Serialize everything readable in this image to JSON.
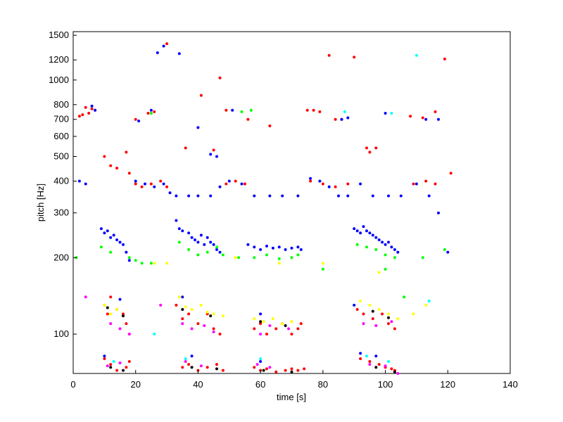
{
  "chart_data": {
    "type": "scatter",
    "title": "",
    "xlabel": "time [s]",
    "ylabel": "pitch [Hz]",
    "xlim": [
      0,
      140
    ],
    "ylim": [
      70,
      1550
    ],
    "y_scale": "log",
    "grid": false,
    "legend": "none",
    "x_ticks": [
      0,
      20,
      40,
      60,
      80,
      100,
      120,
      140
    ],
    "x_tick_labels": [
      "0",
      "20",
      "40",
      "60",
      "80",
      "100",
      "120",
      "140"
    ],
    "y_ticks": [
      100,
      200,
      300,
      400,
      500,
      600,
      700,
      800,
      1000,
      1200,
      1500
    ],
    "y_tick_labels": [
      "100",
      "200",
      "300",
      "400",
      "500",
      "600",
      "700",
      "800",
      "1000",
      "1200",
      "1500"
    ],
    "series": [
      {
        "color": "#ff0000",
        "points": [
          [
            2,
            720
          ],
          [
            3,
            730
          ],
          [
            4,
            780
          ],
          [
            5,
            740
          ],
          [
            6,
            770
          ],
          [
            7,
            760
          ],
          [
            10,
            500
          ],
          [
            12,
            460
          ],
          [
            14,
            450
          ],
          [
            17,
            520
          ],
          [
            18,
            430
          ],
          [
            20,
            700
          ],
          [
            24,
            740
          ],
          [
            26,
            750
          ],
          [
            30,
            1390
          ],
          [
            36,
            540
          ],
          [
            41,
            870
          ],
          [
            45,
            530
          ],
          [
            47,
            1020
          ],
          [
            49,
            760
          ],
          [
            56,
            700
          ],
          [
            63,
            660
          ],
          [
            75,
            760
          ],
          [
            77,
            760
          ],
          [
            79,
            750
          ],
          [
            82,
            1250
          ],
          [
            84,
            700
          ],
          [
            86,
            700
          ],
          [
            90,
            1230
          ],
          [
            94,
            540
          ],
          [
            95,
            520
          ],
          [
            97,
            540
          ],
          [
            108,
            720
          ],
          [
            112,
            710
          ],
          [
            116,
            750
          ],
          [
            119,
            1210
          ],
          [
            121,
            430
          ],
          [
            20,
            390
          ],
          [
            22,
            380
          ],
          [
            25,
            390
          ],
          [
            28,
            400
          ],
          [
            30,
            380
          ],
          [
            49,
            390
          ],
          [
            52,
            400
          ],
          [
            55,
            390
          ],
          [
            76,
            400
          ],
          [
            80,
            390
          ],
          [
            84,
            380
          ],
          [
            88,
            390
          ],
          [
            109,
            390
          ],
          [
            113,
            400
          ],
          [
            116,
            390
          ],
          [
            10,
            130
          ],
          [
            11,
            120
          ],
          [
            12,
            140
          ],
          [
            14,
            125
          ],
          [
            16,
            120
          ],
          [
            17,
            110
          ],
          [
            18,
            100
          ],
          [
            33,
            130
          ],
          [
            35,
            115
          ],
          [
            37,
            120
          ],
          [
            40,
            110
          ],
          [
            43,
            120
          ],
          [
            45,
            105
          ],
          [
            47,
            100
          ],
          [
            58,
            105
          ],
          [
            60,
            110
          ],
          [
            62,
            100
          ],
          [
            65,
            105
          ],
          [
            67,
            110
          ],
          [
            70,
            100
          ],
          [
            72,
            105
          ],
          [
            73,
            110
          ],
          [
            91,
            125
          ],
          [
            93,
            120
          ],
          [
            96,
            115
          ],
          [
            99,
            120
          ],
          [
            101,
            110
          ],
          [
            103,
            105
          ],
          [
            10,
            80
          ],
          [
            12,
            76
          ],
          [
            14,
            72
          ],
          [
            17,
            74
          ],
          [
            18,
            78
          ],
          [
            35,
            74
          ],
          [
            37,
            76
          ],
          [
            40,
            72
          ],
          [
            43,
            74
          ],
          [
            46,
            76
          ],
          [
            48,
            72
          ],
          [
            58,
            74
          ],
          [
            60,
            72
          ],
          [
            62,
            73
          ],
          [
            65,
            71
          ],
          [
            68,
            72
          ],
          [
            70,
            73
          ],
          [
            72,
            72
          ],
          [
            74,
            73
          ],
          [
            92,
            80
          ],
          [
            95,
            78
          ],
          [
            98,
            76
          ],
          [
            100,
            74
          ],
          [
            102,
            73
          ],
          [
            103,
            72
          ]
        ]
      },
      {
        "color": "#0000ff",
        "points": [
          [
            2,
            400
          ],
          [
            4,
            390
          ],
          [
            6,
            790
          ],
          [
            7,
            760
          ],
          [
            21,
            690
          ],
          [
            25,
            760
          ],
          [
            27,
            1280
          ],
          [
            29,
            1360
          ],
          [
            34,
            1270
          ],
          [
            40,
            650
          ],
          [
            44,
            510
          ],
          [
            46,
            500
          ],
          [
            51,
            760
          ],
          [
            86,
            700
          ],
          [
            88,
            710
          ],
          [
            100,
            740
          ],
          [
            113,
            700
          ],
          [
            117,
            700
          ],
          [
            20,
            400
          ],
          [
            23,
            390
          ],
          [
            26,
            380
          ],
          [
            29,
            390
          ],
          [
            31,
            360
          ],
          [
            33,
            350
          ],
          [
            37,
            350
          ],
          [
            40,
            350
          ],
          [
            44,
            350
          ],
          [
            47,
            380
          ],
          [
            50,
            400
          ],
          [
            54,
            390
          ],
          [
            58,
            350
          ],
          [
            63,
            350
          ],
          [
            67,
            350
          ],
          [
            72,
            350
          ],
          [
            76,
            410
          ],
          [
            79,
            400
          ],
          [
            82,
            380
          ],
          [
            85,
            350
          ],
          [
            88,
            350
          ],
          [
            92,
            390
          ],
          [
            96,
            350
          ],
          [
            101,
            350
          ],
          [
            105,
            350
          ],
          [
            110,
            390
          ],
          [
            114,
            350
          ],
          [
            117,
            300
          ],
          [
            120,
            210
          ],
          [
            9,
            260
          ],
          [
            10,
            250
          ],
          [
            11,
            255
          ],
          [
            12,
            240
          ],
          [
            13,
            245
          ],
          [
            14,
            235
          ],
          [
            15,
            230
          ],
          [
            16,
            225
          ],
          [
            17,
            210
          ],
          [
            18,
            195
          ],
          [
            33,
            280
          ],
          [
            34,
            260
          ],
          [
            35,
            255
          ],
          [
            37,
            250
          ],
          [
            38,
            240
          ],
          [
            39,
            235
          ],
          [
            40,
            230
          ],
          [
            41,
            245
          ],
          [
            42,
            225
          ],
          [
            43,
            240
          ],
          [
            44,
            230
          ],
          [
            45,
            225
          ],
          [
            46,
            215
          ],
          [
            47,
            210
          ],
          [
            56,
            225
          ],
          [
            58,
            220
          ],
          [
            60,
            215
          ],
          [
            62,
            222
          ],
          [
            64,
            218
          ],
          [
            66,
            220
          ],
          [
            68,
            215
          ],
          [
            70,
            218
          ],
          [
            72,
            220
          ],
          [
            73,
            215
          ],
          [
            90,
            260
          ],
          [
            91,
            255
          ],
          [
            92,
            250
          ],
          [
            93,
            265
          ],
          [
            94,
            255
          ],
          [
            95,
            250
          ],
          [
            96,
            245
          ],
          [
            97,
            240
          ],
          [
            98,
            235
          ],
          [
            99,
            230
          ],
          [
            100,
            225
          ],
          [
            101,
            230
          ],
          [
            102,
            220
          ],
          [
            103,
            215
          ],
          [
            104,
            210
          ],
          [
            15,
            137
          ],
          [
            35,
            140
          ],
          [
            60,
            120
          ],
          [
            90,
            130
          ],
          [
            10,
            82
          ],
          [
            38,
            82
          ],
          [
            60,
            78
          ],
          [
            92,
            84
          ],
          [
            97,
            82
          ]
        ]
      },
      {
        "color": "#00ff00",
        "points": [
          [
            1,
            200
          ],
          [
            9,
            220
          ],
          [
            12,
            210
          ],
          [
            18,
            200
          ],
          [
            20,
            195
          ],
          [
            22,
            190
          ],
          [
            25,
            190
          ],
          [
            34,
            230
          ],
          [
            37,
            215
          ],
          [
            40,
            205
          ],
          [
            43,
            210
          ],
          [
            46,
            220
          ],
          [
            48,
            205
          ],
          [
            53,
            200
          ],
          [
            58,
            200
          ],
          [
            62,
            205
          ],
          [
            66,
            198
          ],
          [
            70,
            200
          ],
          [
            72,
            205
          ],
          [
            91,
            225
          ],
          [
            94,
            220
          ],
          [
            97,
            215
          ],
          [
            100,
            205
          ],
          [
            103,
            200
          ],
          [
            106,
            140
          ],
          [
            112,
            200
          ],
          [
            119,
            215
          ],
          [
            80,
            180
          ],
          [
            100,
            180
          ],
          [
            25,
            740
          ],
          [
            54,
            750
          ],
          [
            57,
            760
          ]
        ]
      },
      {
        "color": "#ffff00",
        "points": [
          [
            10,
            130
          ],
          [
            12,
            120
          ],
          [
            14,
            125
          ],
          [
            16,
            118
          ],
          [
            34,
            140
          ],
          [
            36,
            128
          ],
          [
            38,
            125
          ],
          [
            41,
            130
          ],
          [
            43,
            122
          ],
          [
            45,
            120
          ],
          [
            48,
            118
          ],
          [
            58,
            115
          ],
          [
            61,
            112
          ],
          [
            64,
            115
          ],
          [
            67,
            110
          ],
          [
            70,
            112
          ],
          [
            92,
            135
          ],
          [
            95,
            130
          ],
          [
            98,
            125
          ],
          [
            101,
            120
          ],
          [
            104,
            115
          ],
          [
            109,
            120
          ],
          [
            113,
            130
          ],
          [
            26,
            190
          ],
          [
            30,
            190
          ],
          [
            52,
            200
          ],
          [
            66,
            190
          ],
          [
            80,
            190
          ],
          [
            98,
            175
          ]
        ]
      },
      {
        "color": "#ff00ff",
        "points": [
          [
            4,
            140
          ],
          [
            12,
            110
          ],
          [
            15,
            105
          ],
          [
            18,
            100
          ],
          [
            28,
            130
          ],
          [
            35,
            110
          ],
          [
            38,
            105
          ],
          [
            42,
            108
          ],
          [
            45,
            102
          ],
          [
            60,
            100
          ],
          [
            63,
            108
          ],
          [
            69,
            105
          ],
          [
            93,
            110
          ],
          [
            97,
            108
          ],
          [
            102,
            112
          ],
          [
            11,
            75
          ],
          [
            15,
            77
          ],
          [
            36,
            78
          ],
          [
            41,
            75
          ],
          [
            59,
            76
          ],
          [
            63,
            74
          ],
          [
            95,
            76
          ],
          [
            100,
            75
          ],
          [
            104,
            70
          ]
        ]
      },
      {
        "color": "#00ffff",
        "points": [
          [
            26,
            100
          ],
          [
            110,
            1250
          ],
          [
            87,
            750
          ],
          [
            102,
            740
          ],
          [
            114,
            135
          ],
          [
            60,
            80
          ],
          [
            36,
            80
          ],
          [
            13,
            78
          ],
          [
            94,
            82
          ],
          [
            101,
            78
          ]
        ]
      },
      {
        "color": "#000000",
        "points": [
          [
            11,
            127
          ],
          [
            16,
            118
          ],
          [
            35,
            125
          ],
          [
            44,
            118
          ],
          [
            60,
            112
          ],
          [
            68,
            108
          ],
          [
            96,
            123
          ],
          [
            101,
            116
          ],
          [
            12,
            74
          ],
          [
            16,
            72
          ],
          [
            38,
            74
          ],
          [
            46,
            73
          ],
          [
            61,
            72
          ],
          [
            70,
            71
          ],
          [
            97,
            74
          ],
          [
            103,
            71
          ]
        ]
      }
    ]
  }
}
